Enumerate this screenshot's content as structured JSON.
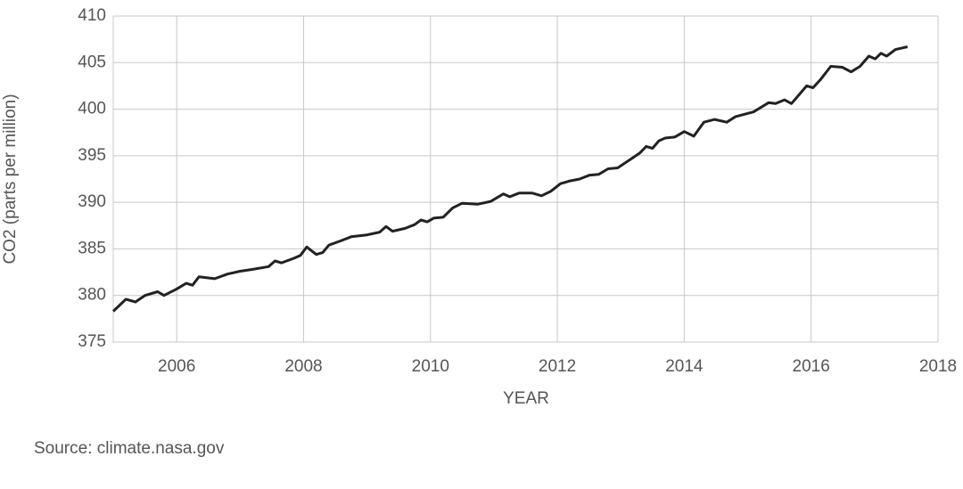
{
  "chart_data": {
    "type": "line",
    "x_label": "YEAR",
    "y_label": "CO2 (parts per million)",
    "source": "Source: climate.nasa.gov",
    "xlim": [
      2005,
      2018
    ],
    "xticks": [
      2006,
      2008,
      2010,
      2012,
      2014,
      2016,
      2018
    ],
    "ylim": [
      375,
      410
    ],
    "yticks": [
      375,
      380,
      385,
      390,
      395,
      400,
      405,
      410
    ],
    "grid": true,
    "series": [
      {
        "color": "#222222",
        "x": [
          2005.0,
          2005.2,
          2005.35,
          2005.5,
          2005.7,
          2005.8,
          2006.0,
          2006.15,
          2006.25,
          2006.35,
          2006.6,
          2006.8,
          2007.0,
          2007.2,
          2007.45,
          2007.55,
          2007.65,
          2007.85,
          2007.95,
          2008.05,
          2008.2,
          2008.3,
          2008.4,
          2008.6,
          2008.75,
          2009.0,
          2009.2,
          2009.3,
          2009.4,
          2009.6,
          2009.75,
          2009.85,
          2009.95,
          2010.05,
          2010.2,
          2010.35,
          2010.5,
          2010.75,
          2010.95,
          2011.15,
          2011.25,
          2011.4,
          2011.6,
          2011.75,
          2011.9,
          2012.05,
          2012.2,
          2012.35,
          2012.5,
          2012.65,
          2012.8,
          2012.95,
          2013.15,
          2013.3,
          2013.4,
          2013.5,
          2013.6,
          2013.7,
          2013.85,
          2014.0,
          2014.15,
          2014.31,
          2014.48,
          2014.67,
          2014.81,
          2015.09,
          2015.33,
          2015.44,
          2015.58,
          2015.69,
          2015.93,
          2016.03,
          2016.15,
          2016.31,
          2016.49,
          2016.63,
          2016.77,
          2016.91,
          2017.01,
          2017.1,
          2017.19,
          2017.33,
          2017.52
        ],
        "values": [
          378.3,
          379.6,
          379.3,
          380.0,
          380.4,
          380.0,
          380.7,
          381.3,
          381.1,
          382.0,
          381.8,
          382.3,
          382.6,
          382.8,
          383.1,
          383.7,
          383.5,
          384.0,
          384.3,
          385.2,
          384.4,
          384.6,
          385.4,
          385.9,
          386.3,
          386.5,
          386.8,
          387.4,
          386.9,
          387.2,
          387.6,
          388.1,
          387.9,
          388.3,
          388.4,
          389.4,
          389.9,
          389.8,
          390.1,
          390.9,
          390.6,
          391.0,
          391.0,
          390.7,
          391.2,
          392.0,
          392.3,
          392.5,
          392.9,
          393.0,
          393.6,
          393.7,
          394.6,
          395.3,
          396.0,
          395.8,
          396.6,
          396.9,
          397.0,
          397.6,
          397.1,
          398.6,
          398.9,
          398.6,
          399.2,
          399.7,
          400.7,
          400.6,
          401.0,
          400.6,
          402.5,
          402.3,
          403.2,
          404.6,
          404.5,
          404.0,
          404.6,
          405.7,
          405.4,
          406.0,
          405.7,
          406.4,
          406.7
        ]
      }
    ]
  }
}
